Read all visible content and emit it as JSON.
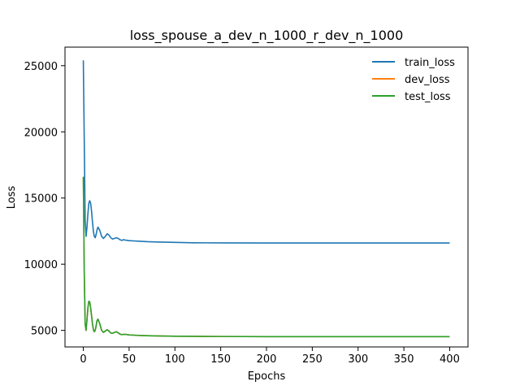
{
  "chart_data": {
    "type": "line",
    "title": "loss_spouse_a_dev_n_1000_r_dev_n_1000",
    "xlabel": "Epochs",
    "ylabel": "Loss",
    "xlim": [
      -20,
      420
    ],
    "ylim": [
      3750,
      26400
    ],
    "xticks": [
      0,
      50,
      100,
      150,
      200,
      250,
      300,
      350,
      400
    ],
    "yticks": [
      5000,
      10000,
      15000,
      20000,
      25000
    ],
    "grid": false,
    "legend_position": "top-right",
    "series": [
      {
        "name": "train_loss",
        "color": "#1f77b4",
        "x": [
          0,
          1,
          2,
          3,
          4,
          5,
          6,
          7,
          8,
          9,
          10,
          11,
          12,
          13,
          14,
          15,
          16,
          18,
          20,
          22,
          24,
          26,
          28,
          30,
          32,
          34,
          36,
          38,
          40,
          42,
          44,
          46,
          48,
          50,
          55,
          60,
          70,
          80,
          100,
          120,
          150,
          200,
          250,
          300,
          350,
          400
        ],
        "y": [
          25400,
          19500,
          13300,
          12100,
          12800,
          13800,
          14600,
          14800,
          14600,
          14000,
          13200,
          12500,
          12100,
          12000,
          12250,
          12600,
          12800,
          12550,
          12100,
          11950,
          12100,
          12300,
          12200,
          12000,
          11900,
          11950,
          12000,
          11950,
          11850,
          11800,
          11850,
          11820,
          11800,
          11780,
          11760,
          11740,
          11700,
          11680,
          11650,
          11620,
          11610,
          11600,
          11600,
          11600,
          11600,
          11600
        ]
      },
      {
        "name": "dev_loss",
        "color": "#ff7f0e",
        "x": [
          0,
          1,
          2,
          3,
          4,
          5,
          6,
          7,
          8,
          9,
          10,
          11,
          12,
          13,
          14,
          15,
          16,
          18,
          20,
          22,
          24,
          26,
          28,
          30,
          32,
          34,
          36,
          38,
          40,
          42,
          44,
          46,
          48,
          50,
          55,
          60,
          70,
          80,
          100,
          120,
          150,
          200,
          250,
          300,
          350,
          400
        ],
        "y": [
          16600,
          9500,
          5500,
          5000,
          5800,
          6700,
          7200,
          7150,
          6700,
          6100,
          5500,
          5050,
          4900,
          5000,
          5350,
          5750,
          5850,
          5500,
          5000,
          4850,
          4950,
          5050,
          4950,
          4800,
          4780,
          4850,
          4900,
          4820,
          4720,
          4680,
          4700,
          4700,
          4680,
          4660,
          4640,
          4620,
          4600,
          4580,
          4560,
          4550,
          4540,
          4530,
          4530,
          4530,
          4530,
          4530
        ]
      },
      {
        "name": "test_loss",
        "color": "#2ca02c",
        "x": [
          0,
          1,
          2,
          3,
          4,
          5,
          6,
          7,
          8,
          9,
          10,
          11,
          12,
          13,
          14,
          15,
          16,
          18,
          20,
          22,
          24,
          26,
          28,
          30,
          32,
          34,
          36,
          38,
          40,
          42,
          44,
          46,
          48,
          50,
          55,
          60,
          70,
          80,
          100,
          120,
          150,
          200,
          250,
          300,
          350,
          400
        ],
        "y": [
          16600,
          9500,
          5500,
          5000,
          5800,
          6700,
          7200,
          7150,
          6700,
          6100,
          5500,
          5050,
          4900,
          5000,
          5350,
          5750,
          5850,
          5500,
          5000,
          4850,
          4950,
          5050,
          4950,
          4800,
          4780,
          4850,
          4900,
          4820,
          4720,
          4680,
          4700,
          4700,
          4680,
          4660,
          4640,
          4620,
          4600,
          4580,
          4560,
          4550,
          4540,
          4530,
          4530,
          4530,
          4530,
          4530
        ]
      }
    ]
  }
}
